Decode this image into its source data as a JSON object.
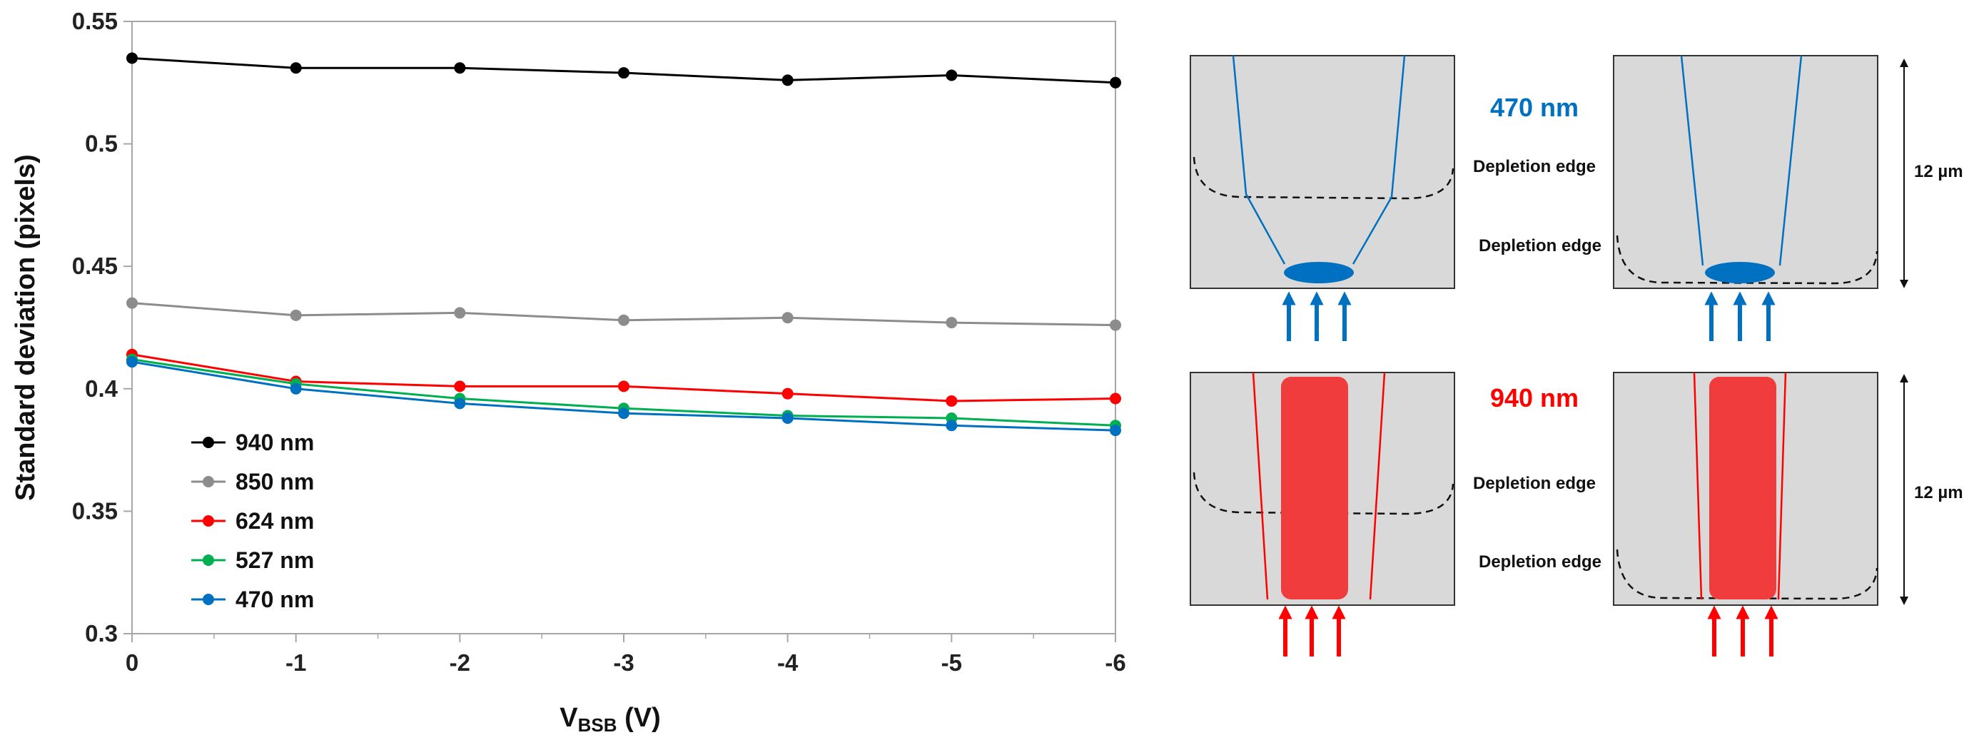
{
  "chart_data": {
    "type": "line",
    "title": "",
    "xlabel": "V",
    "xlabel_sub": "BSB",
    "xlabel_unit": " (V)",
    "ylabel": "Standard deviation (pixels)",
    "x": [
      0,
      -1,
      -2,
      -3,
      -4,
      -5,
      -6
    ],
    "x_tick_labels": [
      "0",
      "-1",
      "-2",
      "-3",
      "-4",
      "-5",
      "-6"
    ],
    "xlim": [
      0,
      -6
    ],
    "ylim": [
      0.3,
      0.55
    ],
    "y_ticks": [
      0.3,
      0.35,
      0.4,
      0.45,
      0.5,
      0.55
    ],
    "y_tick_labels": [
      "0.3",
      "0.35",
      "0.4",
      "0.45",
      "0.5",
      "0.55"
    ],
    "grid": false,
    "legend_position": "bottom-left",
    "series": [
      {
        "name": "940 nm",
        "color": "#000000",
        "values": [
          0.535,
          0.531,
          0.531,
          0.529,
          0.526,
          0.528,
          0.525
        ]
      },
      {
        "name": "850 nm",
        "color": "#8c8c8c",
        "values": [
          0.435,
          0.43,
          0.431,
          0.428,
          0.429,
          0.427,
          0.426
        ]
      },
      {
        "name": "624 nm",
        "color": "#ff0000",
        "values": [
          0.414,
          0.403,
          0.401,
          0.401,
          0.398,
          0.395,
          0.396
        ]
      },
      {
        "name": "527 nm",
        "color": "#00b050",
        "values": [
          0.412,
          0.402,
          0.396,
          0.392,
          0.389,
          0.388,
          0.385
        ]
      },
      {
        "name": "470 nm",
        "color": "#0070c0",
        "values": [
          0.411,
          0.4,
          0.394,
          0.39,
          0.388,
          0.385,
          0.383
        ]
      }
    ]
  },
  "diagram": {
    "blue_label": "470 nm",
    "red_label": "940 nm",
    "depletion_label": "Depletion edge",
    "thickness_label": "12 µm",
    "colors": {
      "blue": "#0070c0",
      "red": "#ff0000",
      "red_fill": "#f03c3c",
      "panel_fill": "#d9d9d9",
      "blue_wl_text": "#0070c0",
      "red_wl_text": "#ff0000"
    }
  }
}
